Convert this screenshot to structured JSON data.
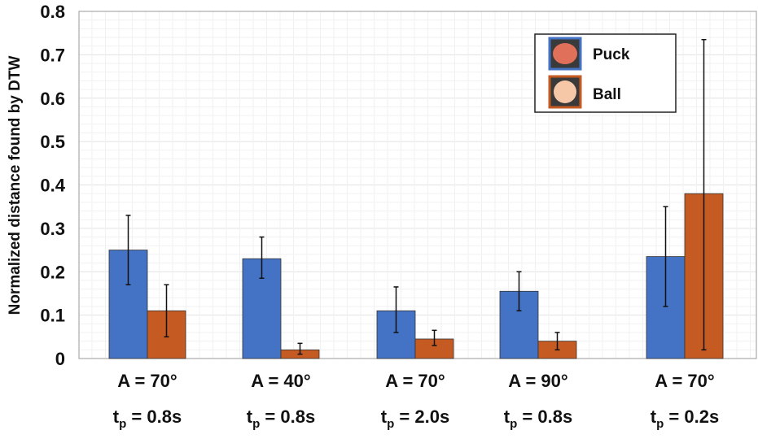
{
  "chart_data": {
    "type": "bar",
    "title": "",
    "ylabel": "Normalized distance found by DTW",
    "xlabel": "",
    "ylim": [
      0,
      0.8
    ],
    "yticks": [
      "0",
      "0.1",
      "0.2",
      "0.3",
      "0.4",
      "0.5",
      "0.6",
      "0.7",
      "0.8"
    ],
    "grid": true,
    "legend_position": "top-right",
    "categories": [
      {
        "line1": "A = 70°",
        "t": "t",
        "sub": "p",
        "rest": " = 0.8s"
      },
      {
        "line1": "A = 40°",
        "t": "t",
        "sub": "p",
        "rest": " = 0.8s"
      },
      {
        "line1": "A = 70°",
        "t": "t",
        "sub": "p",
        "rest": " = 2.0s"
      },
      {
        "line1": "A = 90°",
        "t": "t",
        "sub": "p",
        "rest": " = 0.8s"
      },
      {
        "line1": "A = 70°",
        "t": "t",
        "sub": "p",
        "rest": " = 0.2s"
      }
    ],
    "series": [
      {
        "name": "Puck",
        "color": "#4472c4",
        "values": [
          0.25,
          0.23,
          0.11,
          0.155,
          0.235
        ],
        "err_low": [
          0.17,
          0.185,
          0.06,
          0.11,
          0.12
        ],
        "err_high": [
          0.33,
          0.28,
          0.165,
          0.2,
          0.35
        ]
      },
      {
        "name": "Ball",
        "color": "#c55a22",
        "values": [
          0.11,
          0.02,
          0.045,
          0.04,
          0.38
        ],
        "err_low": [
          0.05,
          0.01,
          0.03,
          0.02,
          0.02
        ],
        "err_high": [
          0.17,
          0.035,
          0.065,
          0.06,
          0.735
        ]
      }
    ]
  }
}
